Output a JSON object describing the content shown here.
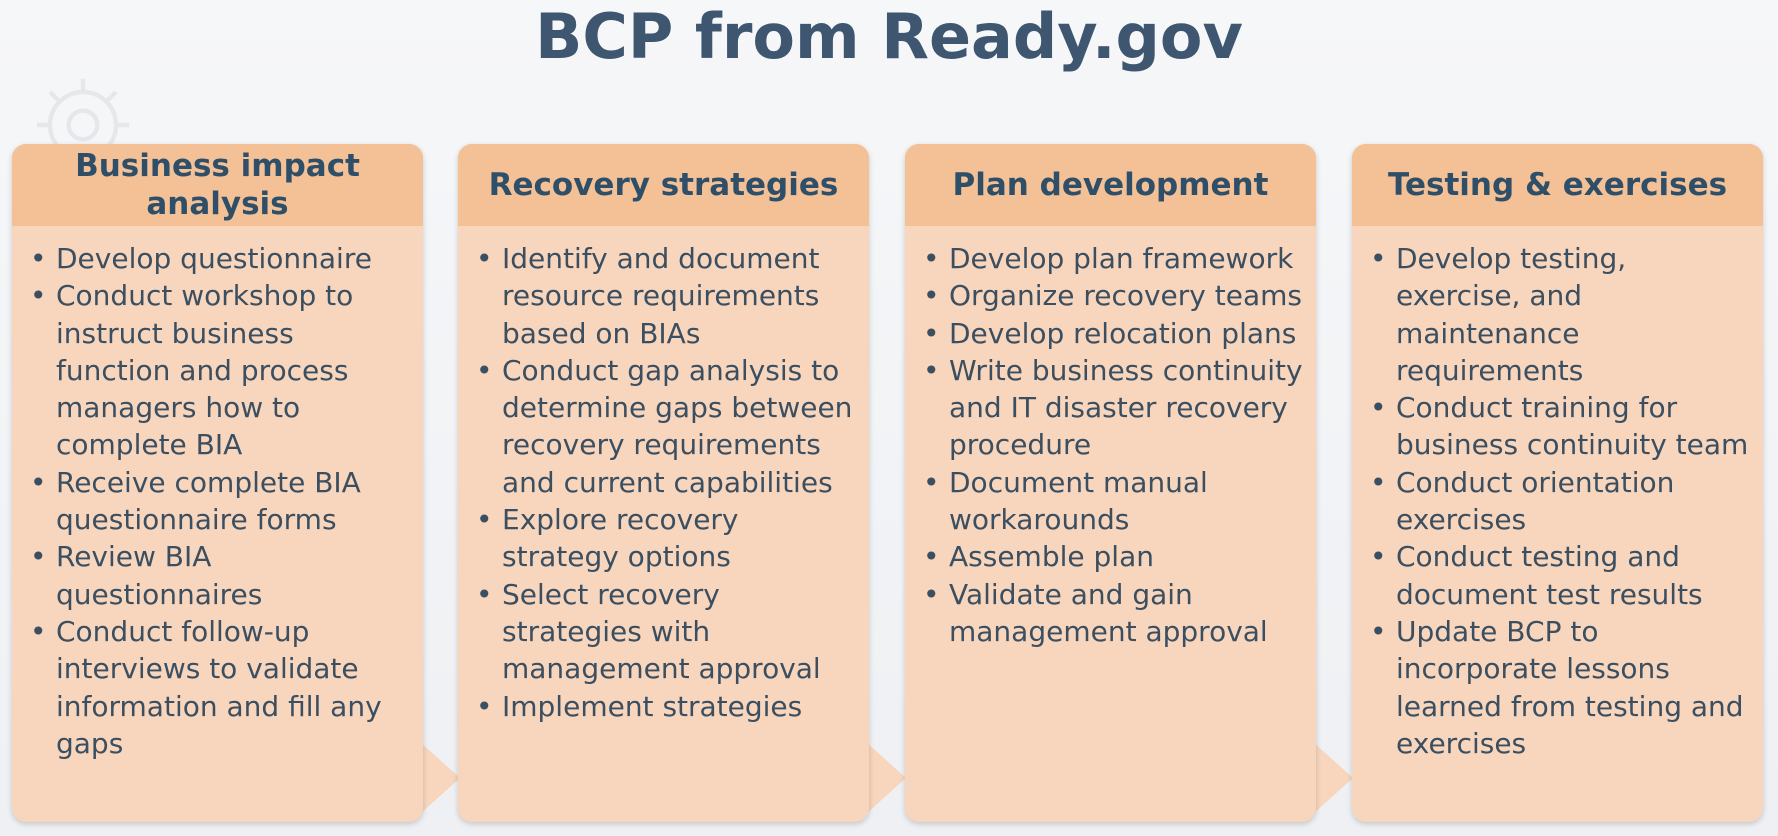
{
  "title": "BCP from Ready.gov",
  "colors": {
    "header": "#f4c197",
    "body": "#f8d6bd",
    "text": "#3b4f61",
    "title": "#3e5670"
  },
  "icons": {
    "watermark": "gear-icon"
  },
  "stages": [
    {
      "heading": "Business impact analysis",
      "items": [
        "Develop questionnaire",
        "Conduct workshop to instruct business function and process managers how to complete BIA",
        "Receive complete BIA questionnaire forms",
        "Review BIA questionnaires",
        "Conduct follow-up interviews to validate information and fill any gaps"
      ]
    },
    {
      "heading": "Recovery strategies",
      "items": [
        "Identify and document resource requirements based on BIAs",
        "Conduct gap analysis to determine gaps between recovery requirements and current capabilities",
        "Explore recovery strategy options",
        "Select recovery strategies with management approval",
        "Implement strategies"
      ]
    },
    {
      "heading": "Plan development",
      "items": [
        "Develop plan framework",
        "Organize recovery teams",
        "Develop relocation plans",
        "Write business continuity and IT disaster recovery procedure",
        "Document manual workarounds",
        "Assemble plan",
        "Validate and gain management approval"
      ]
    },
    {
      "heading": "Testing & exercises",
      "items": [
        "Develop testing, exercise, and maintenance requirements",
        "Conduct training for business continuity team",
        "Conduct orientation exercises",
        "Conduct testing and document test results",
        "Update BCP to incorporate lessons learned from testing and exercises"
      ]
    }
  ]
}
